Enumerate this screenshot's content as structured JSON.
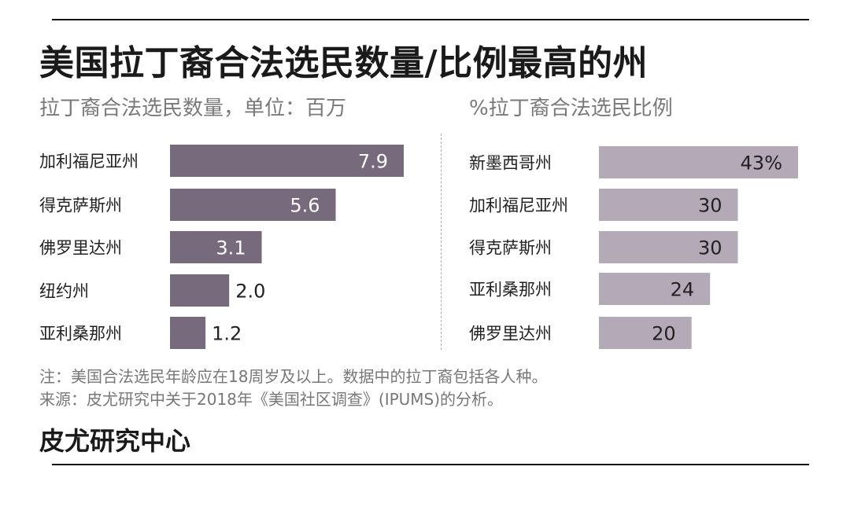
{
  "title": "美国拉丁裔合法选民数量/比例最高的州",
  "left_subtitle": "拉丁裔合法选民数量，单位：百万",
  "right_subtitle": "%拉丁裔合法选民比例",
  "notes": {
    "note": "注：美国合法选民年龄应在18周岁及以上。数据中的拉丁裔包括各人种。",
    "source": "来源：皮尤研究中关于2018年《美国社区调查》(IPUMS)的分析。"
  },
  "brand": "皮尤研究中心",
  "colors": {
    "left_bar": "#776a7c",
    "right_bar": "#b3a9b7",
    "rule": "#111111"
  },
  "chart_data": [
    {
      "type": "bar",
      "orientation": "horizontal",
      "title": "拉丁裔合法选民数量，单位：百万",
      "categories": [
        "加利福尼亚州",
        "得克萨斯州",
        "佛罗里达州",
        "纽约州",
        "亚利桑那州"
      ],
      "values": [
        7.9,
        5.6,
        3.1,
        2.0,
        1.2
      ],
      "value_labels": [
        "7.9",
        "5.6",
        "3.1",
        "2.0",
        "1.2"
      ],
      "xlim": [
        0,
        7.9
      ],
      "grid": false
    },
    {
      "type": "bar",
      "orientation": "horizontal",
      "title": "%拉丁裔合法选民比例",
      "categories": [
        "新墨西哥州",
        "加利福尼亚州",
        "得克萨斯州",
        "亚利桑那州",
        "佛罗里达州"
      ],
      "values": [
        43,
        30,
        30,
        24,
        20
      ],
      "value_labels": [
        "43%",
        "30",
        "30",
        "24",
        "20"
      ],
      "xlim": [
        0,
        43
      ],
      "grid": false
    }
  ]
}
